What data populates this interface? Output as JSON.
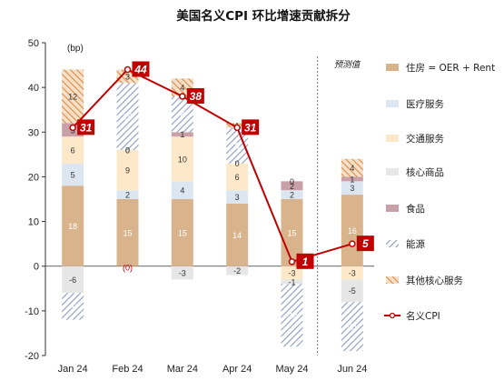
{
  "chart_data": {
    "type": "bar",
    "stacked": true,
    "title": "美国名义CPI 环比增速贡献拆分",
    "unit_label": "(bp)",
    "forecast_label": "预测值",
    "categories": [
      "Jan 24",
      "Feb 24",
      "Mar 24",
      "Apr 24",
      "May 24",
      "Jun 24"
    ],
    "ylim": [
      -20,
      50
    ],
    "yticks": [
      -20,
      -10,
      0,
      10,
      20,
      30,
      40,
      50
    ],
    "forecast_start_index": 5,
    "series": [
      {
        "name": "住房 = OER + Rent",
        "key": "housing",
        "color": "#d9b38c",
        "pattern": "solid",
        "values": [
          18,
          15,
          15,
          14,
          15,
          16
        ]
      },
      {
        "name": "医疗服务",
        "key": "medical",
        "color": "#dce6f1",
        "pattern": "solid",
        "values": [
          5,
          2,
          4,
          3,
          2,
          3
        ]
      },
      {
        "name": "交通服务",
        "key": "transport",
        "color": "#fde9c9",
        "pattern": "solid",
        "values": [
          6,
          9,
          10,
          6,
          -3,
          -3
        ]
      },
      {
        "name": "核心商品",
        "key": "coregoods",
        "color": "#e6e6e6",
        "pattern": "solid",
        "values": [
          -6,
          0,
          -3,
          -2,
          -1,
          -5
        ]
      },
      {
        "name": "食品",
        "key": "food",
        "color": "#c9a0a7",
        "pattern": "solid",
        "values": [
          3,
          0,
          1,
          0,
          2,
          1
        ]
      },
      {
        "name": "能源",
        "key": "energy",
        "color": "#9aa9c9",
        "pattern": "hatch-blue",
        "values": [
          -6,
          15,
          8,
          8,
          -14,
          -11
        ]
      },
      {
        "name": "其他核心服务",
        "key": "othercore",
        "color": "#e3a56b",
        "pattern": "hatch-orange",
        "values": [
          12,
          3,
          4,
          1,
          0,
          4
        ]
      }
    ],
    "data_labels": [
      {
        "cat": 0,
        "series": "housing",
        "text": "18"
      },
      {
        "cat": 0,
        "series": "medical",
        "text": "5"
      },
      {
        "cat": 0,
        "series": "transport",
        "text": "6"
      },
      {
        "cat": 0,
        "series": "food",
        "text": "3"
      },
      {
        "cat": 0,
        "series": "othercore",
        "text": "12"
      },
      {
        "cat": 0,
        "series": "coregoods",
        "text": "-6"
      },
      {
        "cat": 0,
        "series": "energy",
        "text": "-6"
      },
      {
        "cat": 1,
        "series": "housing",
        "text": "15"
      },
      {
        "cat": 1,
        "series": "medical",
        "text": "2"
      },
      {
        "cat": 1,
        "series": "transport",
        "text": "9"
      },
      {
        "cat": 1,
        "series": "coregoods",
        "text": "0"
      },
      {
        "cat": 1,
        "series": "food",
        "text": "0"
      },
      {
        "cat": 1,
        "series": "energy",
        "text": "15"
      },
      {
        "cat": 1,
        "series": "othercore",
        "text": "3"
      },
      {
        "cat": 2,
        "series": "housing",
        "text": "15"
      },
      {
        "cat": 2,
        "series": "medical",
        "text": "4"
      },
      {
        "cat": 2,
        "series": "transport",
        "text": "10"
      },
      {
        "cat": 2,
        "series": "food",
        "text": "1"
      },
      {
        "cat": 2,
        "series": "energy",
        "text": "8"
      },
      {
        "cat": 2,
        "series": "othercore",
        "text": "4"
      },
      {
        "cat": 2,
        "series": "coregoods",
        "text": "-3"
      },
      {
        "cat": 3,
        "series": "housing",
        "text": "14"
      },
      {
        "cat": 3,
        "series": "medical",
        "text": "3"
      },
      {
        "cat": 3,
        "series": "transport",
        "text": "6"
      },
      {
        "cat": 3,
        "series": "food",
        "text": "0"
      },
      {
        "cat": 3,
        "series": "energy",
        "text": "8"
      },
      {
        "cat": 3,
        "series": "othercore",
        "text": "1"
      },
      {
        "cat": 3,
        "series": "coregoods",
        "text": "-2"
      },
      {
        "cat": 4,
        "series": "housing",
        "text": "15"
      },
      {
        "cat": 4,
        "series": "medical",
        "text": "2"
      },
      {
        "cat": 4,
        "series": "food",
        "text": "2"
      },
      {
        "cat": 4,
        "series": "transport",
        "text": "-3"
      },
      {
        "cat": 4,
        "series": "coregoods",
        "text": "-1"
      },
      {
        "cat": 4,
        "series": "energy",
        "text": "-14"
      },
      {
        "cat": 4,
        "series": "othercore",
        "text": "0"
      },
      {
        "cat": 5,
        "series": "housing",
        "text": "16"
      },
      {
        "cat": 5,
        "series": "medical",
        "text": "3"
      },
      {
        "cat": 5,
        "series": "food",
        "text": "1"
      },
      {
        "cat": 5,
        "series": "othercore",
        "text": "4"
      },
      {
        "cat": 5,
        "series": "transport",
        "text": "-3"
      },
      {
        "cat": 5,
        "series": "coregoods",
        "text": "-5"
      },
      {
        "cat": 5,
        "series": "energy",
        "text": "-11"
      }
    ],
    "feb_zero_note": "(0)",
    "line_series": {
      "name": "名义CPI",
      "color": "#c00000",
      "values": [
        31,
        44,
        38,
        31,
        1,
        5
      ],
      "labels": [
        "31",
        "44",
        "38",
        "31",
        "1",
        "5"
      ]
    },
    "legend_position": "right"
  }
}
